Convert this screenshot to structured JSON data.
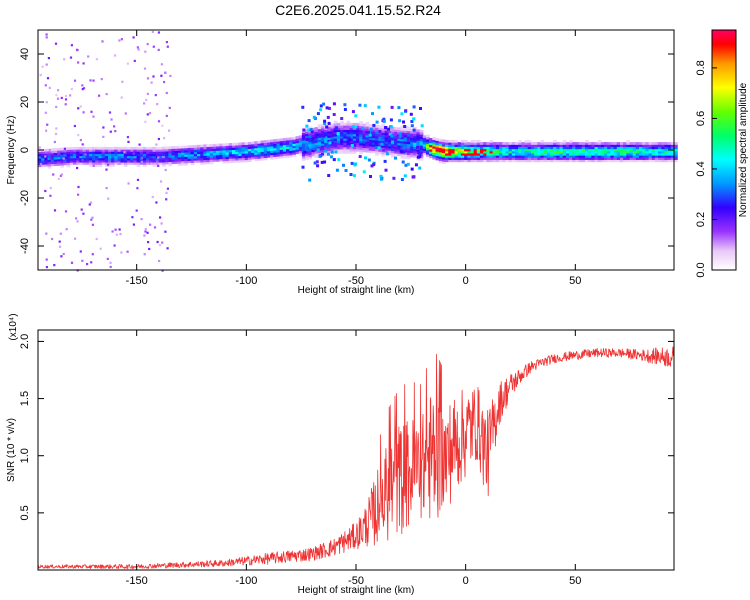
{
  "title": "C2E6.2025.041.15.52.R24",
  "colors": {
    "snr_line": "#ee3333",
    "frame": "#000000"
  },
  "chart_data": [
    {
      "type": "heatmap",
      "xlabel": "Height of straight line (km)",
      "ylabel": "Frequency (Hz)",
      "xlim": [
        -195,
        95
      ],
      "ylim": [
        -50,
        50
      ],
      "x_ticks": [
        -150,
        -100,
        -50,
        0,
        50
      ],
      "y_ticks": [
        -40,
        -20,
        0,
        20,
        40
      ],
      "colorbar": {
        "label": "Normalized spectral amplitude",
        "range": [
          0,
          0.95
        ],
        "ticks": [
          0.0,
          0.2,
          0.4,
          0.6,
          0.8
        ],
        "colormap": "rainbow-magenta"
      },
      "ridge": {
        "height_km": [
          -195,
          -180,
          -160,
          -140,
          -120,
          -100,
          -80,
          -70,
          -60,
          -50,
          -40,
          -30,
          -20,
          -15,
          -10,
          0,
          20,
          50,
          95
        ],
        "frequency_hz": [
          -4,
          -3,
          -3,
          -3,
          -2,
          -1,
          1,
          3,
          5,
          5,
          4,
          3,
          2,
          0,
          -1,
          -1,
          -1,
          -1,
          -1
        ],
        "amplitude": [
          0.3,
          0.3,
          0.32,
          0.3,
          0.35,
          0.4,
          0.4,
          0.35,
          0.3,
          0.3,
          0.28,
          0.3,
          0.35,
          0.9,
          0.85,
          0.6,
          0.45,
          0.5,
          0.45
        ]
      }
    },
    {
      "type": "line",
      "xlabel": "Height of straight line (km)",
      "ylabel": "SNR (10 * v/v)",
      "y_multiplier": "(x10⁴)",
      "xlim": [
        -195,
        95
      ],
      "ylim": [
        0,
        2.1
      ],
      "x_ticks": [
        -150,
        -100,
        -50,
        0,
        50
      ],
      "y_ticks": [
        0.5,
        1.0,
        1.5,
        2.0
      ],
      "y_tick_labels": [
        "0.5",
        "1.0",
        "1.5",
        "2.0"
      ],
      "envelope": {
        "height_km": [
          -195,
          -150,
          -110,
          -90,
          -70,
          -60,
          -50,
          -45,
          -40,
          -35,
          -30,
          -25,
          -20,
          -15,
          -10,
          -5,
          0,
          5,
          10,
          15,
          20,
          25,
          30,
          40,
          50,
          60,
          70,
          80,
          95
        ],
        "snr_mean": [
          0.03,
          0.03,
          0.06,
          0.1,
          0.14,
          0.2,
          0.3,
          0.4,
          0.55,
          0.7,
          0.8,
          0.85,
          0.9,
          1.0,
          0.95,
          1.1,
          1.2,
          1.3,
          1.0,
          1.45,
          1.6,
          1.7,
          1.78,
          1.85,
          1.88,
          1.9,
          1.9,
          1.88,
          1.86
        ],
        "snr_spread": [
          0.015,
          0.02,
          0.03,
          0.05,
          0.06,
          0.08,
          0.12,
          0.2,
          0.35,
          0.45,
          0.5,
          0.5,
          0.45,
          0.6,
          0.5,
          0.45,
          0.4,
          0.35,
          0.4,
          0.2,
          0.12,
          0.07,
          0.05,
          0.04,
          0.04,
          0.04,
          0.04,
          0.05,
          0.1
        ]
      }
    }
  ]
}
